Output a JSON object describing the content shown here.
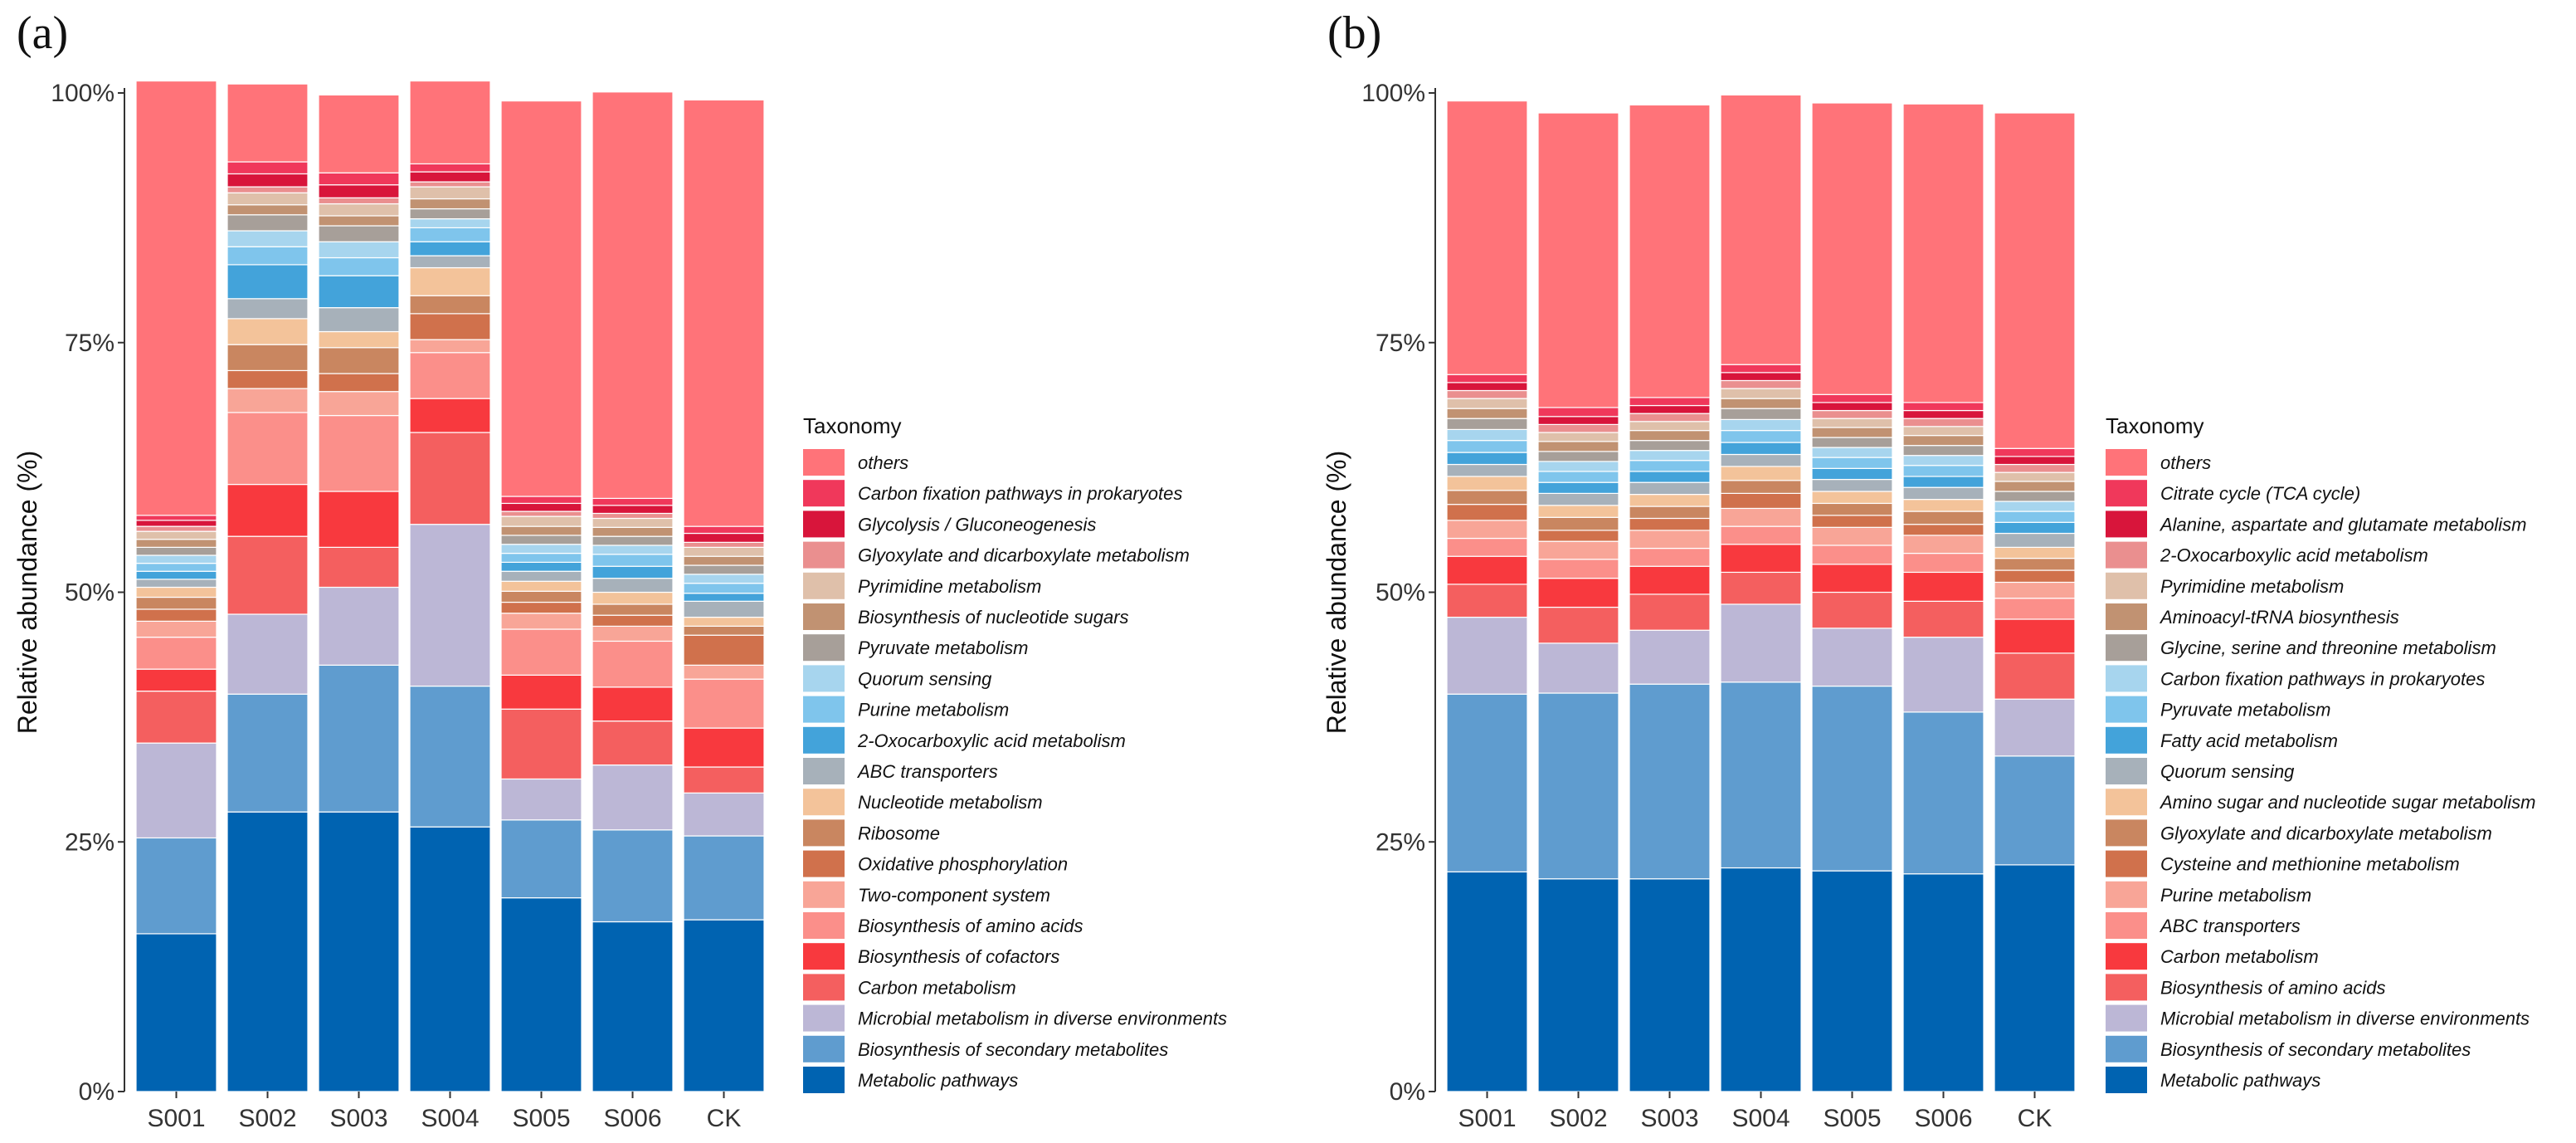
{
  "chart_data": [
    {
      "panel": "(a)",
      "type": "bar",
      "stacked": true,
      "ylabel": "Relative abundance (%)",
      "xlabel": "",
      "ylim": [
        0,
        100
      ],
      "yticks": [
        "0%",
        "25%",
        "50%",
        "75%",
        "100%"
      ],
      "categories": [
        "S001",
        "S002",
        "S003",
        "S004",
        "S005",
        "S006",
        "CK"
      ],
      "legend_title": "Taxonomy",
      "series": [
        {
          "name": "Metabolic pathways",
          "color": "#0063b1",
          "values": [
            15.8,
            28.0,
            28.0,
            26.5,
            19.4,
            17.0,
            17.2
          ]
        },
        {
          "name": "Biosynthesis of secondary metabolites",
          "color": "#5f9ccf",
          "values": [
            9.6,
            11.8,
            14.7,
            14.1,
            7.8,
            9.2,
            8.4
          ]
        },
        {
          "name": "Microbial metabolism in diverse environments",
          "color": "#bcb7d6",
          "values": [
            9.5,
            8.0,
            7.8,
            16.2,
            4.1,
            6.5,
            4.3
          ]
        },
        {
          "name": "Carbon metabolism",
          "color": "#f45f5f",
          "values": [
            5.2,
            7.8,
            4.0,
            9.2,
            7.0,
            4.4,
            2.6
          ]
        },
        {
          "name": "Biosynthesis of cofactors",
          "color": "#f8393e",
          "values": [
            2.2,
            5.2,
            5.6,
            3.4,
            3.4,
            3.4,
            3.9
          ]
        },
        {
          "name": "Biosynthesis of amino acids",
          "color": "#fb8f8a",
          "values": [
            3.2,
            7.2,
            7.6,
            4.6,
            4.6,
            4.6,
            4.9
          ]
        },
        {
          "name": "Two-component system",
          "color": "#f8a597",
          "values": [
            1.6,
            2.4,
            2.4,
            1.3,
            1.6,
            1.5,
            1.4
          ]
        },
        {
          "name": "Oxidative phosphorylation",
          "color": "#d0714c",
          "values": [
            1.2,
            1.8,
            1.8,
            2.6,
            1.1,
            1.1,
            3.0
          ]
        },
        {
          "name": "Ribosome",
          "color": "#c98660",
          "values": [
            1.2,
            2.6,
            2.6,
            1.8,
            1.1,
            1.1,
            0.9
          ]
        },
        {
          "name": "Nucleotide metabolism",
          "color": "#f3c39a",
          "values": [
            1.0,
            2.6,
            1.6,
            2.8,
            1.0,
            1.2,
            0.9
          ]
        },
        {
          "name": "ABC transporters",
          "color": "#a7b1ba",
          "values": [
            0.8,
            2.0,
            2.4,
            1.2,
            1.0,
            1.4,
            1.6
          ]
        },
        {
          "name": "2-Oxocarboxylic acid metabolism",
          "color": "#43a3da",
          "values": [
            0.8,
            3.4,
            3.2,
            1.4,
            0.9,
            1.2,
            0.8
          ]
        },
        {
          "name": "Purine metabolism",
          "color": "#7fc5ec",
          "values": [
            0.8,
            1.8,
            1.8,
            1.4,
            0.9,
            1.2,
            1.0
          ]
        },
        {
          "name": "Quorum sensing",
          "color": "#a7d5ee",
          "values": [
            0.8,
            1.6,
            1.6,
            0.9,
            0.9,
            0.9,
            0.9
          ]
        },
        {
          "name": "Pyruvate metabolism",
          "color": "#a79f99",
          "values": [
            0.8,
            1.6,
            1.6,
            1.0,
            0.9,
            0.9,
            0.9
          ]
        },
        {
          "name": "Biosynthesis of nucleotide sugars",
          "color": "#c19272",
          "values": [
            0.8,
            1.0,
            1.0,
            1.0,
            0.9,
            0.9,
            0.9
          ]
        },
        {
          "name": "Pyrimidine metabolism",
          "color": "#dfc0aa",
          "values": [
            0.8,
            1.2,
            1.2,
            1.2,
            1.0,
            0.9,
            0.9
          ]
        },
        {
          "name": "Glyoxylate and dicarboxylate metabolism",
          "color": "#ea8f8f",
          "values": [
            0.5,
            0.6,
            0.6,
            0.5,
            0.5,
            0.5,
            0.5
          ]
        },
        {
          "name": "Glycolysis / Gluconeogenesis",
          "color": "#d8153b",
          "values": [
            0.6,
            1.3,
            1.3,
            1.0,
            0.8,
            0.8,
            0.9
          ]
        },
        {
          "name": "Carbon fixation pathways in prokaryotes",
          "color": "#f0385b",
          "values": [
            0.5,
            1.2,
            1.2,
            0.8,
            0.7,
            0.7,
            0.7
          ]
        },
        {
          "name": "others",
          "color": "#ff7379",
          "values": [
            43.5,
            7.8,
            7.8,
            8.3,
            39.6,
            40.7,
            42.7
          ]
        }
      ]
    },
    {
      "panel": "(b)",
      "type": "bar",
      "stacked": true,
      "ylabel": "Relative abundance (%)",
      "xlabel": "",
      "ylim": [
        0,
        100
      ],
      "yticks": [
        "0%",
        "25%",
        "50%",
        "75%",
        "100%"
      ],
      "categories": [
        "S001",
        "S002",
        "S003",
        "S004",
        "S005",
        "S006",
        "CK"
      ],
      "legend_title": "Taxonomy",
      "series": [
        {
          "name": "Metabolic pathways",
          "color": "#0063b1",
          "values": [
            22.0,
            21.3,
            21.3,
            22.4,
            22.1,
            21.8,
            22.7
          ]
        },
        {
          "name": "Biosynthesis of secondary metabolites",
          "color": "#5f9ccf",
          "values": [
            17.8,
            18.6,
            19.5,
            18.6,
            18.5,
            16.2,
            10.9
          ]
        },
        {
          "name": "Microbial metabolism in diverse environments",
          "color": "#bcb7d6",
          "values": [
            7.7,
            5.0,
            5.4,
            7.8,
            5.8,
            7.5,
            5.7
          ]
        },
        {
          "name": "Biosynthesis of amino acids",
          "color": "#f45f5f",
          "values": [
            3.3,
            3.6,
            3.6,
            3.2,
            3.6,
            3.6,
            4.6
          ]
        },
        {
          "name": "Carbon metabolism",
          "color": "#f8393e",
          "values": [
            2.8,
            2.9,
            2.8,
            2.8,
            2.8,
            2.9,
            3.4
          ]
        },
        {
          "name": "ABC transporters",
          "color": "#fb8f8a",
          "values": [
            1.8,
            1.9,
            1.8,
            1.8,
            1.9,
            1.9,
            2.1
          ]
        },
        {
          "name": "Purine metabolism",
          "color": "#f8a597",
          "values": [
            1.8,
            1.8,
            1.8,
            1.8,
            1.8,
            1.8,
            1.6
          ]
        },
        {
          "name": "Cysteine and methionine metabolism",
          "color": "#d0714c",
          "values": [
            1.6,
            1.1,
            1.2,
            1.5,
            1.2,
            1.1,
            1.2
          ]
        },
        {
          "name": "Glyoxylate and dicarboxylate metabolism",
          "color": "#c98660",
          "values": [
            1.4,
            1.3,
            1.2,
            1.3,
            1.2,
            1.3,
            1.2
          ]
        },
        {
          "name": "Amino sugar and nucleotide sugar metabolism",
          "color": "#f3c39a",
          "values": [
            1.4,
            1.2,
            1.2,
            1.4,
            1.2,
            1.2,
            1.1
          ]
        },
        {
          "name": "Quorum sensing",
          "color": "#a7b1ba",
          "values": [
            1.2,
            1.2,
            1.2,
            1.2,
            1.2,
            1.2,
            1.4
          ]
        },
        {
          "name": "Fatty acid metabolism",
          "color": "#43a3da",
          "values": [
            1.2,
            1.1,
            1.1,
            1.2,
            1.1,
            1.1,
            1.1
          ]
        },
        {
          "name": "Pyruvate metabolism",
          "color": "#7fc5ec",
          "values": [
            1.2,
            1.1,
            1.1,
            1.2,
            1.1,
            1.1,
            1.1
          ]
        },
        {
          "name": "Carbon fixation pathways in prokaryotes",
          "color": "#a7d5ee",
          "values": [
            1.1,
            1.0,
            1.0,
            1.1,
            1.0,
            1.0,
            1.0
          ]
        },
        {
          "name": "Glycine, serine and threonine metabolism",
          "color": "#a79f99",
          "values": [
            1.1,
            1.0,
            1.0,
            1.1,
            1.0,
            1.0,
            1.0
          ]
        },
        {
          "name": "Aminoacyl-tRNA biosynthesis",
          "color": "#c19272",
          "values": [
            1.0,
            1.0,
            1.0,
            1.0,
            1.0,
            1.0,
            1.0
          ]
        },
        {
          "name": "Pyrimidine metabolism",
          "color": "#dfc0aa",
          "values": [
            1.0,
            0.9,
            0.9,
            1.0,
            0.9,
            0.9,
            0.9
          ]
        },
        {
          "name": "2-Oxocarboxylic acid metabolism",
          "color": "#ea8f8f",
          "values": [
            0.8,
            0.8,
            0.8,
            0.8,
            0.8,
            0.8,
            0.8
          ]
        },
        {
          "name": "Alanine, aspartate and glutamate metabolism",
          "color": "#d8153b",
          "values": [
            0.8,
            0.8,
            0.8,
            0.8,
            0.8,
            0.8,
            0.8
          ]
        },
        {
          "name": "Citrate cycle (TCA cycle)",
          "color": "#f0385b",
          "values": [
            0.8,
            0.9,
            0.8,
            0.8,
            0.8,
            0.8,
            0.8
          ]
        },
        {
          "name": "others",
          "color": "#ff7379",
          "values": [
            27.4,
            29.5,
            29.3,
            27.0,
            29.2,
            29.9,
            33.6
          ]
        }
      ]
    }
  ]
}
